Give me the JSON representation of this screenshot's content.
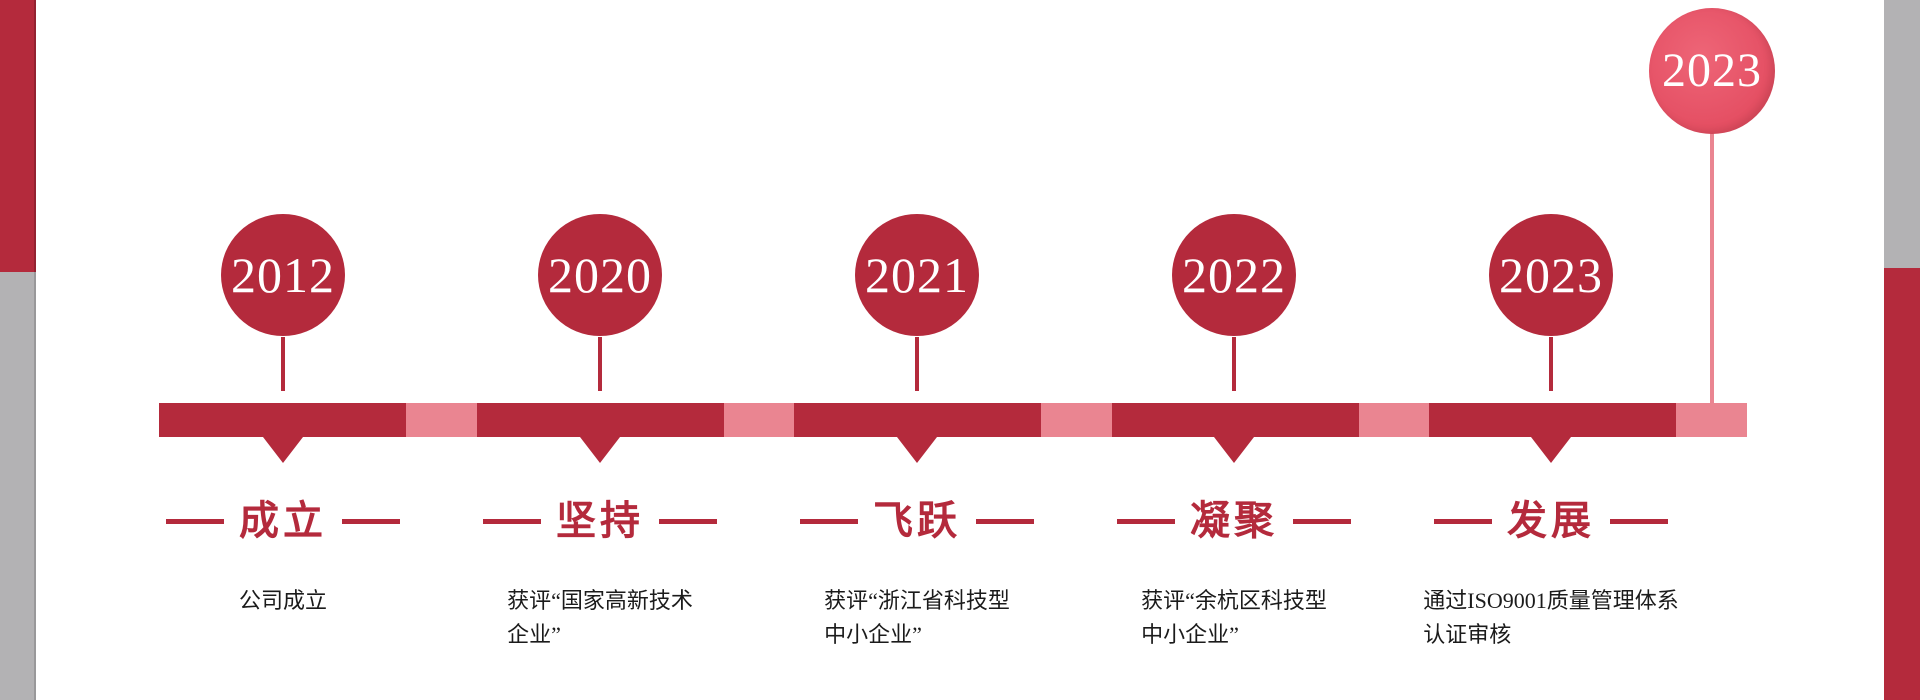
{
  "timeline": {
    "milestones": [
      {
        "year": "2012",
        "label": "成立",
        "desc_lines": [
          "公司成立"
        ]
      },
      {
        "year": "2020",
        "label": "坚持",
        "desc_lines": [
          "获评“国家高新技术",
          "企业”"
        ]
      },
      {
        "year": "2021",
        "label": "飞跃",
        "desc_lines": [
          "获评“浙江省科技型",
          "中小企业”"
        ]
      },
      {
        "year": "2022",
        "label": "凝聚",
        "desc_lines": [
          "获评“余杭区科技型",
          "中小企业”"
        ]
      },
      {
        "year": "2023",
        "label": "发展",
        "desc_lines": [
          "通过ISO9001质量管理体系",
          "认证审核"
        ]
      }
    ],
    "floating_year": "2023"
  },
  "colors": {
    "accent_dark": "#b42a3c",
    "accent_pink": "#ea8591",
    "balloon_rose": "#e65367",
    "edge_gray": "#b3b2b4",
    "text_black": "#1b1b1b",
    "year_text_white": "#ffffff"
  }
}
